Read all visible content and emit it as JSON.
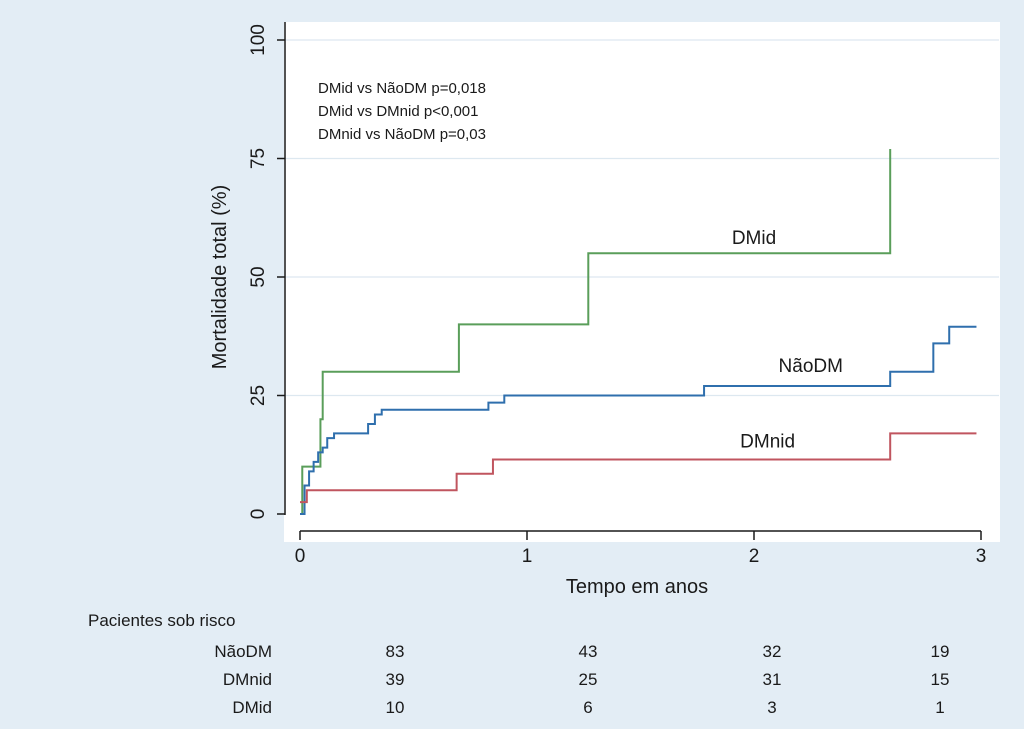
{
  "chart_data": {
    "type": "line",
    "step": true,
    "xlabel": "Tempo em anos",
    "ylabel": "Mortalidade total (%)",
    "xlim": [
      0,
      3
    ],
    "ylim": [
      0,
      100
    ],
    "xticks": [
      0,
      1,
      2,
      3
    ],
    "yticks": [
      0,
      25,
      50,
      75,
      100
    ],
    "grid": "horizontal",
    "annotations": [
      "DMid vs NãoDM p=0,018",
      "DMid vs DMnid p<0,001",
      "DMnid vs NãoDM p=0,03"
    ],
    "series": [
      {
        "name": "DMid",
        "color": "#5a9e5a",
        "label_at": [
          2.0,
          57
        ],
        "x": [
          0,
          0.01,
          0.08,
          0.09,
          0.1,
          0.7,
          1.27,
          2.6
        ],
        "y": [
          0,
          10,
          10,
          20,
          30,
          40,
          55,
          77
        ]
      },
      {
        "name": "NãoDM",
        "color": "#2f6fad",
        "label_at": [
          2.25,
          30
        ],
        "x": [
          0,
          0.02,
          0.04,
          0.06,
          0.08,
          0.1,
          0.12,
          0.15,
          0.2,
          0.3,
          0.33,
          0.36,
          0.83,
          0.9,
          1.78,
          2.6,
          2.79,
          2.86,
          2.98
        ],
        "y": [
          0,
          6,
          9,
          11,
          13,
          14,
          16,
          17,
          17,
          19,
          21,
          22,
          23.5,
          25,
          27,
          30,
          36,
          39.5,
          39.5
        ]
      },
      {
        "name": "DMnid",
        "color": "#c0555f",
        "label_at": [
          2.06,
          14
        ],
        "x": [
          0,
          0.03,
          0.69,
          0.85,
          2.6,
          2.98
        ],
        "y": [
          2.5,
          5,
          8.5,
          11.5,
          17,
          17
        ]
      }
    ],
    "risk_table": {
      "title": "Pacientes sob risco",
      "times": [
        0,
        1,
        2,
        3
      ],
      "rows": [
        {
          "name": "NãoDM",
          "values": [
            "83",
            "43",
            "32",
            "19"
          ]
        },
        {
          "name": "DMnid",
          "values": [
            "39",
            "25",
            "31",
            "15"
          ]
        },
        {
          "name": "DMid",
          "values": [
            "10",
            "6",
            "3",
            "1"
          ]
        }
      ]
    }
  }
}
